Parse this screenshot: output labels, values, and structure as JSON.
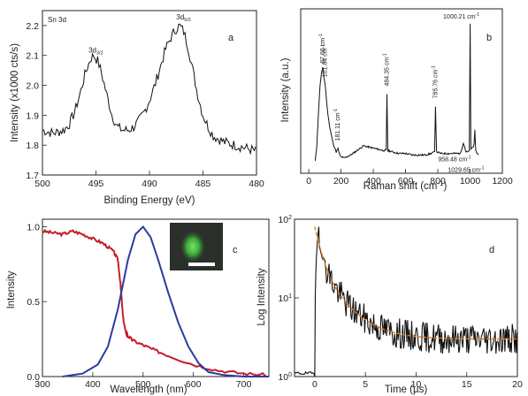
{
  "figure": {
    "panels": [
      {
        "id": "a",
        "panel_label": "a",
        "chart_data": {
          "type": "line",
          "title": "Sn 3d",
          "xlabel": "Binding Energy (eV)",
          "ylabel": "Intensity (x1000 cts/s)",
          "xlim": [
            500,
            480
          ],
          "ylim": [
            1.7,
            2.25
          ],
          "x_reversed": true,
          "xticks": [
            500,
            495,
            490,
            485,
            480
          ],
          "yticks": [
            1.7,
            1.8,
            1.9,
            2.0,
            2.1,
            2.2
          ],
          "tick_labels_x": [
            "500",
            "495",
            "490",
            "485",
            "480"
          ],
          "tick_labels_y": [
            "1.7",
            "1.8",
            "1.9",
            "2.0",
            "2.1",
            "2.2"
          ],
          "series": [
            {
              "color": "#111111",
              "x": [
                500,
                499,
                498,
                497.5,
                497,
                496.5,
                496,
                495.5,
                495.2,
                494.8,
                494.4,
                494,
                493.5,
                493,
                492.5,
                492,
                491.5,
                491,
                490.5,
                490,
                489.5,
                489,
                488.5,
                488,
                487.5,
                487.2,
                486.8,
                486.4,
                486,
                485.5,
                485,
                484.5,
                484,
                483,
                482,
                481,
                480
              ],
              "y": [
                1.85,
                1.84,
                1.85,
                1.87,
                1.91,
                1.97,
                2.04,
                2.09,
                2.1,
                2.08,
                2.03,
                1.97,
                1.9,
                1.86,
                1.85,
                1.85,
                1.86,
                1.88,
                1.91,
                1.95,
                2.0,
                2.06,
                2.12,
                2.16,
                2.19,
                2.2,
                2.18,
                2.13,
                2.06,
                1.97,
                1.9,
                1.86,
                1.83,
                1.81,
                1.8,
                1.79,
                1.78
              ]
            }
          ],
          "annotations": [
            {
              "text": "3d",
              "sub": "3/2",
              "x": 495.2,
              "y": 2.11
            },
            {
              "text": "3d",
              "sub": "5/2",
              "x": 487.0,
              "y": 2.22
            }
          ]
        }
      },
      {
        "id": "b",
        "panel_label": "b",
        "chart_data": {
          "type": "line",
          "xlabel": "Raman shift (cm",
          "xlabel_sup": "-1",
          "xlabel_end": ")",
          "ylabel": "Intensity (a.u.)",
          "xlim": [
            -50,
            1200
          ],
          "ylim": [
            0,
            1.08
          ],
          "xticks": [
            0,
            200,
            400,
            600,
            800,
            1000,
            1200
          ],
          "tick_labels_x": [
            "0",
            "200",
            "400",
            "600",
            "800",
            "1000",
            "1200"
          ],
          "series": [
            {
              "color": "#111111",
              "x": [
                40,
                50,
                60,
                70,
                80,
                87.66,
                95,
                101.84,
                115,
                130,
                150,
                170,
                181.11,
                195,
                220,
                260,
                300,
                340,
                380,
                420,
                460,
                480,
                484.35,
                490,
                520,
                560,
                600,
                640,
                680,
                720,
                760,
                780,
                785.76,
                792,
                820,
                860,
                900,
                940,
                958.48,
                975,
                990,
                995,
                1000.21,
                1005,
                1015,
                1025,
                1029.65,
                1035,
                1050
              ],
              "y": [
                0.08,
                0.18,
                0.4,
                0.58,
                0.66,
                0.7,
                0.62,
                0.58,
                0.42,
                0.3,
                0.2,
                0.14,
                0.16,
                0.11,
                0.1,
                0.12,
                0.15,
                0.18,
                0.17,
                0.16,
                0.15,
                0.15,
                0.52,
                0.15,
                0.14,
                0.13,
                0.13,
                0.12,
                0.12,
                0.12,
                0.13,
                0.14,
                0.44,
                0.14,
                0.13,
                0.13,
                0.13,
                0.13,
                0.2,
                0.14,
                0.14,
                0.15,
                0.98,
                0.16,
                0.17,
                0.19,
                0.28,
                0.15,
                0.12
              ]
            }
          ],
          "annotations": [
            {
              "text": "87.66 cm",
              "sup": "-1",
              "x": 87.66,
              "y": 0.71,
              "rotate": true
            },
            {
              "text": "101.84 cm",
              "sup": "-1",
              "x": 101.84,
              "y": 0.62,
              "rotate": true
            },
            {
              "text": "181.11 cm",
              "sup": "-1",
              "x": 181.11,
              "y": 0.2,
              "rotate": true
            },
            {
              "text": "484.35 cm",
              "sup": "-1",
              "x": 484.35,
              "y": 0.56,
              "rotate": true
            },
            {
              "text": "785.76 cm",
              "sup": "-1",
              "x": 785.76,
              "y": 0.48,
              "rotate": true
            },
            {
              "text": "1000.21 cm",
              "sup": "-1",
              "x": 1000.21,
              "y": 1.0,
              "rotate": false
            },
            {
              "text": "958.48 cm",
              "sup": "-1",
              "x": 958.48,
              "y": 0.06,
              "rotate": false
            },
            {
              "text": "1029.65 cm",
              "sup": "-1",
              "x": 1029.65,
              "y": -0.01,
              "rotate": false
            }
          ]
        }
      },
      {
        "id": "c",
        "panel_label": "c",
        "chart_data": {
          "type": "line",
          "xlabel": "Wavelength (nm)",
          "ylabel": "Intensity",
          "xlim": [
            300,
            750
          ],
          "ylim": [
            0,
            1.05
          ],
          "xticks": [
            300,
            400,
            500,
            600,
            700
          ],
          "yticks": [
            0,
            0.5,
            1.0
          ],
          "tick_labels_x": [
            "300",
            "400",
            "500",
            "600",
            "700"
          ],
          "tick_labels_y": [
            "0.0",
            "0.5",
            "1.0"
          ],
          "series": [
            {
              "color": "#c41e2a",
              "x": [
                300,
                320,
                340,
                360,
                380,
                400,
                420,
                440,
                450,
                455,
                460,
                465,
                470,
                480,
                500,
                520,
                550,
                600,
                650,
                700,
                750
              ],
              "y": [
                0.97,
                0.96,
                0.95,
                0.97,
                0.95,
                0.92,
                0.89,
                0.84,
                0.78,
                0.62,
                0.4,
                0.3,
                0.27,
                0.24,
                0.21,
                0.18,
                0.14,
                0.08,
                0.04,
                0.02,
                0.01
              ]
            },
            {
              "color": "#2a3c9e",
              "x": [
                340,
                380,
                410,
                430,
                450,
                470,
                485,
                500,
                515,
                530,
                550,
                570,
                590,
                610,
                630,
                660,
                700,
                750
              ],
              "y": [
                0.0,
                0.02,
                0.08,
                0.2,
                0.45,
                0.78,
                0.95,
                1.0,
                0.93,
                0.78,
                0.56,
                0.36,
                0.2,
                0.09,
                0.03,
                0.01,
                0.0,
                0.0
              ]
            }
          ],
          "inset": {
            "background": "#2b2f2a",
            "glow": "#5fd15a",
            "scalebar": "#ffffff"
          }
        }
      },
      {
        "id": "d",
        "panel_label": "d",
        "chart_data": {
          "type": "line",
          "xlabel": "Time (µs)",
          "ylabel": "Log Intensity",
          "xlim": [
            -2,
            20
          ],
          "ylim_log": [
            1,
            100
          ],
          "y_scale": "log",
          "xticks": [
            0,
            5,
            10,
            15,
            20
          ],
          "tick_labels_x": [
            "0",
            "5",
            "10",
            "15",
            "20"
          ],
          "tick_labels_y": [
            {
              "base": "10",
              "exp": "0"
            },
            {
              "base": "10",
              "exp": "1"
            },
            {
              "base": "10",
              "exp": "2"
            }
          ],
          "fit": {
            "color": "#e07b20",
            "baseline": 3.0,
            "A1": 55,
            "tau1": 0.6,
            "A2": 22,
            "tau2": 2.2,
            "t0": 0
          },
          "data": {
            "color": "#111111",
            "baseline": 3.2,
            "noise": 0.45,
            "t0": 0
          }
        }
      }
    ]
  }
}
